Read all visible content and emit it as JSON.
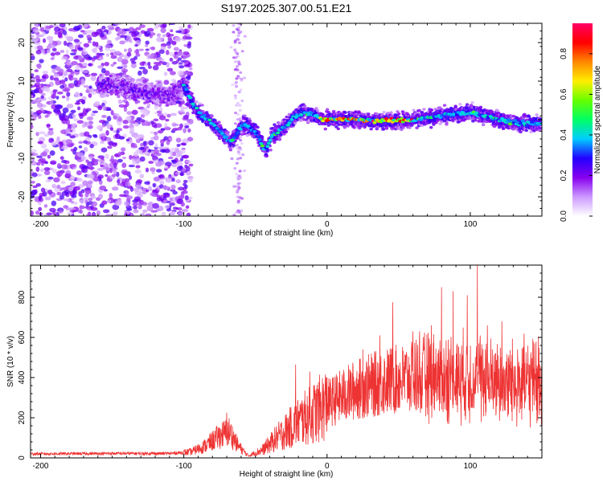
{
  "title": "S197.2025.307.00.51.E21",
  "chart_data": [
    {
      "type": "heatmap",
      "name": "spectrogram",
      "xlabel": "Height of straight line (km)",
      "ylabel": "Frequency (Hz)",
      "xlim": [
        -207,
        150
      ],
      "ylim": [
        -25,
        25
      ],
      "xticks": [
        -200,
        -100,
        0,
        100
      ],
      "yticks": [
        -20,
        -10,
        0,
        10,
        20
      ],
      "xtick_labels": [
        "-200",
        "-100",
        "0",
        "100"
      ],
      "ytick_labels": [
        "-20",
        "-10",
        "0",
        "10",
        "20"
      ],
      "trace": {
        "x": [
          -150,
          -130,
          -110,
          -100,
          -95,
          -90,
          -80,
          -72,
          -67,
          -62,
          -58,
          -50,
          -43,
          -38,
          -30,
          -22,
          -15,
          -8,
          -2,
          5,
          20,
          40,
          60,
          80,
          100,
          120,
          135,
          150
        ],
        "y": [
          9,
          7,
          6,
          9,
          5,
          2,
          -1,
          -4,
          -6,
          -3,
          -1,
          -3,
          -8,
          -4,
          -2,
          1,
          2,
          1,
          0,
          0.3,
          0,
          -0.3,
          0,
          1,
          2,
          0,
          -1,
          -1
        ]
      },
      "colorbar": {
        "label": "Normalized spectral amplitude",
        "range": [
          0,
          0.95
        ],
        "ticks": [
          0.0,
          0.2,
          0.4,
          0.6,
          0.8
        ],
        "tick_labels": [
          "0.0",
          "0.2",
          "0.4",
          "0.6",
          "0.8"
        ],
        "colors": [
          "#ffffff",
          "#cc99ff",
          "#8800ee",
          "#2200ff",
          "#00ccff",
          "#00ff66",
          "#66ff00",
          "#ffee00",
          "#ff8800",
          "#ff0000",
          "#ff0066"
        ]
      }
    },
    {
      "type": "line",
      "name": "snr",
      "xlabel": "Height of straight line (km)",
      "ylabel": "SNR (10 * v/v)",
      "xlim": [
        -207,
        150
      ],
      "ylim": [
        0,
        960
      ],
      "xticks": [
        -200,
        -100,
        0,
        100
      ],
      "yticks": [
        0,
        200,
        400,
        600,
        800
      ],
      "xtick_labels": [
        "-200",
        "-100",
        "0",
        "100"
      ],
      "ytick_labels": [
        "0",
        "200",
        "400",
        "600",
        "800"
      ],
      "color": "#ee3333",
      "envelope": {
        "x": [
          -207,
          -150,
          -110,
          -95,
          -85,
          -75,
          -68,
          -62,
          -55,
          -45,
          -35,
          -20,
          -10,
          0,
          20,
          40,
          60,
          80,
          100,
          120,
          150
        ],
        "y": [
          20,
          22,
          22,
          30,
          60,
          110,
          130,
          60,
          10,
          40,
          100,
          180,
          220,
          270,
          340,
          380,
          400,
          400,
          400,
          380,
          380
        ]
      },
      "peaks": {
        "x": [
          -70,
          -22,
          -12,
          0,
          25,
          37,
          46,
          60,
          73,
          80,
          88,
          98,
          105,
          112,
          122,
          133,
          145
        ],
        "y": [
          225,
          465,
          430,
          400,
          540,
          610,
          775,
          630,
          660,
          850,
          830,
          810,
          960,
          660,
          680,
          540,
          570
        ]
      }
    }
  ]
}
